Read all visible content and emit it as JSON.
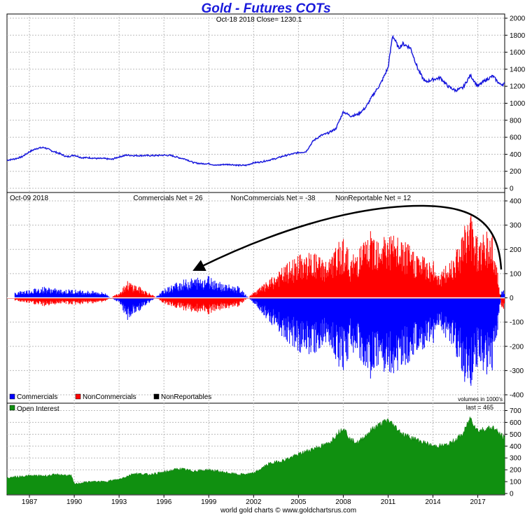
{
  "title": "Gold - Futures COTs",
  "footer": "world gold charts © www.goldchartsrus.com",
  "chart_data": [
    {
      "type": "line",
      "panel": "price",
      "subtitle": "Oct-18  2018   Close= 1230.1",
      "ylim": [
        0,
        2000
      ],
      "yticks": [
        0,
        200,
        400,
        600,
        800,
        1000,
        1200,
        1400,
        1600,
        1800,
        2000
      ],
      "xlim": [
        1985.5,
        2018.8
      ],
      "color": "#1414dc",
      "x": [
        1985.5,
        1986,
        1986.5,
        1987,
        1987.5,
        1988,
        1988.5,
        1989,
        1989.5,
        1990,
        1990.5,
        1991,
        1991.5,
        1992,
        1992.5,
        1993,
        1993.5,
        1994,
        1994.5,
        1995,
        1995.5,
        1996,
        1996.5,
        1997,
        1997.5,
        1998,
        1998.5,
        1999,
        1999.5,
        2000,
        2000.5,
        2001,
        2001.5,
        2002,
        2002.5,
        2003,
        2003.5,
        2004,
        2004.5,
        2005,
        2005.5,
        2006,
        2006.5,
        2007,
        2007.5,
        2008,
        2008.5,
        2009,
        2009.5,
        2010,
        2010.5,
        2011,
        2011.3,
        2011.7,
        2012,
        2012.5,
        2013,
        2013.3,
        2013.5,
        2014,
        2014.5,
        2015,
        2015.5,
        2016,
        2016.5,
        2017,
        2017.5,
        2018,
        2018.5,
        2018.8
      ],
      "y": [
        330,
        345,
        370,
        430,
        470,
        480,
        440,
        410,
        370,
        390,
        360,
        360,
        350,
        350,
        340,
        370,
        390,
        385,
        385,
        385,
        385,
        390,
        385,
        360,
        340,
        300,
        290,
        290,
        270,
        280,
        280,
        270,
        270,
        300,
        310,
        330,
        350,
        380,
        400,
        420,
        430,
        560,
        620,
        650,
        700,
        900,
        850,
        870,
        950,
        1100,
        1230,
        1420,
        1800,
        1650,
        1700,
        1650,
        1400,
        1300,
        1250,
        1280,
        1300,
        1200,
        1150,
        1180,
        1330,
        1200,
        1270,
        1320,
        1220,
        1230
      ]
    },
    {
      "type": "bar",
      "panel": "cot",
      "header_left": "Oct-09  2018",
      "header_items": [
        "Commercials Net = 26",
        "NonCommercials Net = -38",
        "NonReportable Net = 12"
      ],
      "units_note": "volumes in 1000's",
      "legend": [
        {
          "label": "Commercials",
          "color": "#0000ff"
        },
        {
          "label": "NonCommercials",
          "color": "#ff0000"
        },
        {
          "label": "NonReportables",
          "color": "#000000"
        }
      ],
      "ylim": [
        -400,
        400
      ],
      "yticks": [
        -400,
        -300,
        -200,
        -100,
        0,
        100,
        200,
        300,
        400
      ],
      "xlim": [
        1985.5,
        2018.8
      ],
      "x": [
        1986,
        1987,
        1988,
        1989,
        1990,
        1991,
        1992,
        1993,
        1993.5,
        1994,
        1995,
        1996,
        1997,
        1998,
        1999,
        2000,
        2001,
        2002,
        2003,
        2004,
        2005,
        2006,
        2007,
        2008,
        2008.5,
        2009,
        2010,
        2011,
        2012,
        2013,
        2014,
        2014.5,
        2015,
        2016,
        2016.5,
        2017,
        2018,
        2018.6
      ],
      "noncommercials": [
        -10,
        -20,
        -30,
        -20,
        -25,
        -20,
        -15,
        20,
        60,
        50,
        20,
        -20,
        -40,
        -50,
        -60,
        -40,
        -30,
        20,
        60,
        110,
        150,
        160,
        130,
        220,
        140,
        180,
        240,
        230,
        200,
        160,
        130,
        90,
        120,
        240,
        310,
        220,
        240,
        -38
      ],
      "commercials": [
        20,
        30,
        40,
        30,
        30,
        25,
        20,
        -20,
        -80,
        -60,
        -20,
        30,
        60,
        70,
        80,
        50,
        40,
        -20,
        -80,
        -140,
        -190,
        -200,
        -160,
        -270,
        -180,
        -220,
        -290,
        -280,
        -240,
        -200,
        -160,
        -110,
        -150,
        -290,
        -330,
        -250,
        -280,
        26
      ],
      "nonreportables": [
        -5,
        -5,
        -5,
        -5,
        -5,
        -5,
        -5,
        0,
        10,
        5,
        0,
        -5,
        -10,
        -10,
        -10,
        -5,
        -5,
        0,
        15,
        25,
        30,
        35,
        25,
        40,
        30,
        35,
        45,
        45,
        40,
        35,
        25,
        20,
        25,
        40,
        35,
        30,
        35,
        12
      ]
    },
    {
      "type": "area",
      "panel": "open_interest",
      "legend": [
        {
          "label": "Open Interest",
          "color": "#109010"
        }
      ],
      "last_label": "last = 465",
      "ylim": [
        0,
        750
      ],
      "yticks": [
        0,
        100,
        200,
        300,
        400,
        500,
        600,
        700
      ],
      "xlim": [
        1985.5,
        2018.8
      ],
      "xticks": [
        1987,
        1990,
        1993,
        1996,
        1999,
        2002,
        2005,
        2008,
        2011,
        2014,
        2017
      ],
      "color": "#109010",
      "x": [
        1985.5,
        1986,
        1987,
        1988,
        1989,
        1989.8,
        1990,
        1991,
        1992,
        1993,
        1994,
        1995,
        1996,
        1997,
        1998,
        1999,
        2000,
        2001,
        2002,
        2003,
        2004,
        2005,
        2006,
        2007,
        2008,
        2008.5,
        2009,
        2010,
        2011,
        2011.5,
        2012,
        2013,
        2014,
        2015,
        2016,
        2016.5,
        2017,
        2018,
        2018.5,
        2018.8
      ],
      "y": [
        130,
        140,
        150,
        150,
        160,
        150,
        80,
        100,
        100,
        120,
        170,
        160,
        180,
        210,
        190,
        200,
        180,
        160,
        170,
        250,
        280,
        330,
        380,
        420,
        560,
        450,
        430,
        550,
        620,
        560,
        500,
        450,
        400,
        410,
        500,
        640,
        530,
        560,
        500,
        465
      ]
    }
  ]
}
